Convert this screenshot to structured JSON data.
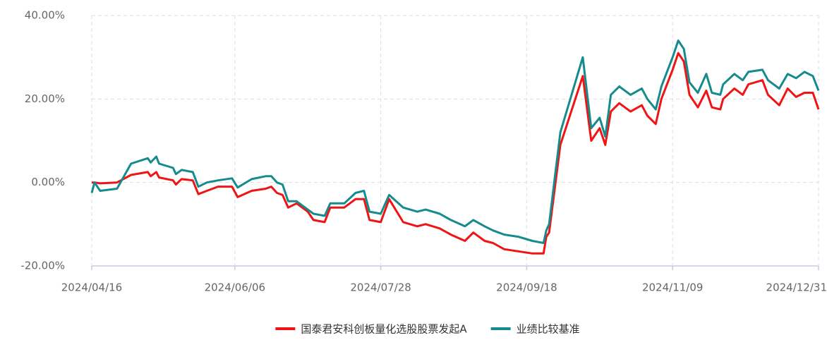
{
  "chart_data": {
    "type": "line",
    "x": [
      "2024/04/16",
      "2024/04/17",
      "2024/04/19",
      "2024/04/25",
      "2024/04/30",
      "2024/05/06",
      "2024/05/07",
      "2024/05/09",
      "2024/05/10",
      "2024/05/15",
      "2024/05/16",
      "2024/05/18",
      "2024/05/22",
      "2024/05/24",
      "2024/05/27",
      "2024/05/31",
      "2024/06/05",
      "2024/06/07",
      "2024/06/12",
      "2024/06/17",
      "2024/06/19",
      "2024/06/21",
      "2024/06/23",
      "2024/06/25",
      "2024/06/28",
      "2024/07/02",
      "2024/07/04",
      "2024/07/08",
      "2024/07/10",
      "2024/07/15",
      "2024/07/19",
      "2024/07/22",
      "2024/07/24",
      "2024/07/28",
      "2024/07/31",
      "2024/08/05",
      "2024/08/10",
      "2024/08/13",
      "2024/08/18",
      "2024/08/22",
      "2024/08/27",
      "2024/08/30",
      "2024/09/03",
      "2024/09/06",
      "2024/09/10",
      "2024/09/15",
      "2024/09/20",
      "2024/09/24",
      "2024/09/25",
      "2024/09/26",
      "2024/09/30",
      "2024/10/08",
      "2024/10/11",
      "2024/10/14",
      "2024/10/16",
      "2024/10/18",
      "2024/10/21",
      "2024/10/25",
      "2024/10/29",
      "2024/10/31",
      "2024/11/03",
      "2024/11/05",
      "2024/11/09",
      "2024/11/11",
      "2024/11/13",
      "2024/11/15",
      "2024/11/18",
      "2024/11/21",
      "2024/11/23",
      "2024/11/26",
      "2024/11/27",
      "2024/12/01",
      "2024/12/04",
      "2024/12/06",
      "2024/12/11",
      "2024/12/13",
      "2024/12/17",
      "2024/12/20",
      "2024/12/23",
      "2024/12/26",
      "2024/12/29",
      "2024/12/31"
    ],
    "series": [
      {
        "name": "国泰君安科创板量化选股股票发起A",
        "color": "#f01414",
        "values": [
          0,
          0,
          -0.2,
          0,
          1.8,
          2.5,
          1.5,
          2.5,
          1.2,
          0.5,
          -0.5,
          0.8,
          0.5,
          -2.8,
          -2,
          -1,
          -1,
          -3.5,
          -2,
          -1.5,
          -1,
          -2.5,
          -3,
          -6,
          -5,
          -7,
          -9,
          -9.5,
          -6,
          -6,
          -4,
          -4,
          -9,
          -9.5,
          -4,
          -9.5,
          -10.5,
          -10,
          -11,
          -12.5,
          -14,
          -12,
          -14,
          -14.5,
          -16,
          -16.5,
          -17,
          -17,
          -13,
          -12,
          9,
          25.5,
          10,
          13,
          9,
          17,
          19,
          17,
          18.5,
          16,
          14,
          20,
          27,
          31,
          29,
          21,
          18,
          22,
          18,
          17.5,
          20,
          22.5,
          21,
          23.5,
          24.5,
          21,
          18.5,
          22.5,
          20.5,
          21.5,
          21.5,
          17.5
        ]
      },
      {
        "name": "业绩比较基准",
        "color": "#168b8e",
        "values": [
          -2.5,
          0,
          -2,
          -1.5,
          4.5,
          5.8,
          4.8,
          6.2,
          4.5,
          3.5,
          2,
          3,
          2.5,
          -1,
          0,
          0.5,
          1,
          -1.2,
          0.8,
          1.5,
          1.5,
          0,
          -0.5,
          -4.5,
          -4.5,
          -6.5,
          -7.5,
          -8,
          -5,
          -5,
          -2.5,
          -2,
          -7,
          -7.5,
          -3,
          -6,
          -7,
          -6.5,
          -7.5,
          -9,
          -10.5,
          -9,
          -10.5,
          -11.5,
          -12.5,
          -13,
          -14,
          -14.5,
          -11.5,
          -10,
          12,
          30,
          13,
          15.5,
          11,
          21,
          23,
          21,
          22.5,
          20,
          17.5,
          23,
          30,
          34,
          32,
          24,
          21.5,
          26,
          21.5,
          21,
          23.5,
          26,
          24.5,
          26.5,
          27,
          24.5,
          22.5,
          26,
          25,
          26.5,
          25.5,
          22
        ]
      }
    ],
    "xlim": [
      "2024/04/16",
      "2024/12/31"
    ],
    "xticks": [
      "2024/04/16",
      "2024/06/06",
      "2024/07/28",
      "2024/09/18",
      "2024/11/09",
      "2024/12/31"
    ],
    "ylim": [
      -20,
      40
    ],
    "yticks": [
      {
        "value": -20,
        "label": "-20.00%"
      },
      {
        "value": 0,
        "label": "0.00%"
      },
      {
        "value": 20,
        "label": "20.00%"
      },
      {
        "value": 40,
        "label": "40.00%"
      }
    ],
    "grid": true,
    "legend": "bottom"
  }
}
